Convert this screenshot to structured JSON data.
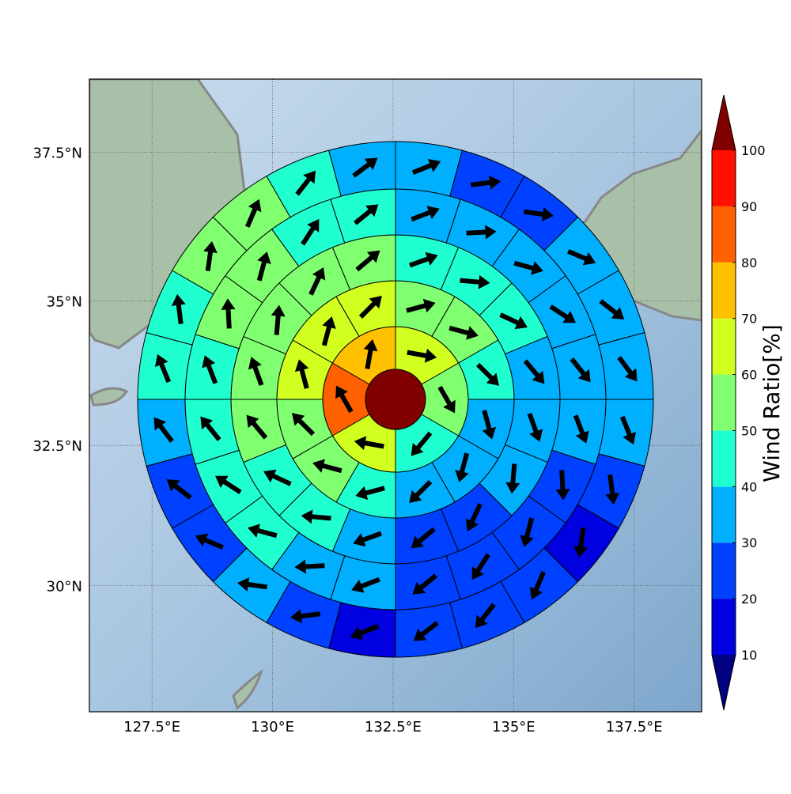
{
  "chart_data": {
    "type": "polar-sectors",
    "xlim": [
      126.2,
      138.9
    ],
    "ylim": [
      27.7,
      38.7
    ],
    "xticks": [
      {
        "value": 127.5,
        "label": "127.5°E"
      },
      {
        "value": 130,
        "label": "130°E"
      },
      {
        "value": 132.5,
        "label": "132.5°E"
      },
      {
        "value": 135,
        "label": "135°E"
      },
      {
        "value": 137.5,
        "label": "137.5°E"
      }
    ],
    "yticks": [
      {
        "value": 30,
        "label": "30°N"
      },
      {
        "value": 32.5,
        "label": "32.5°N"
      },
      {
        "value": 35,
        "label": "35°N"
      },
      {
        "value": 37.5,
        "label": "37.5°N"
      }
    ],
    "grid": true,
    "colorbar": {
      "label": "Wind Ratio[%]",
      "ticks": [
        10,
        20,
        30,
        40,
        50,
        60,
        70,
        80,
        90,
        100
      ],
      "colors": [
        "#000080",
        "#0000e0",
        "#0040ff",
        "#00b0ff",
        "#20ffd0",
        "#80ff70",
        "#d0ff20",
        "#ffc000",
        "#ff6000",
        "#ff1000",
        "#800000"
      ]
    },
    "center_value": 105,
    "rings": [
      {
        "values": [
          65,
          55,
          45,
          65,
          85,
          75
        ],
        "directions": [
          100,
          150,
          220,
          280,
          330,
          10
        ]
      },
      {
        "values": [
          55,
          55,
          45,
          35,
          35,
          35,
          45,
          55,
          55,
          65,
          65,
          65
        ],
        "directions": [
          75,
          105,
          135,
          165,
          195,
          225,
          255,
          285,
          315,
          345,
          15,
          45
        ]
      },
      {
        "values": [
          45,
          45,
          45,
          35,
          35,
          35,
          25,
          25,
          35,
          45,
          45,
          55,
          55,
          55,
          55,
          55
        ],
        "directions": [
          70,
          95,
          115,
          140,
          160,
          185,
          205,
          230,
          250,
          275,
          295,
          320,
          340,
          5,
          25,
          50
        ]
      },
      {
        "values": [
          35,
          35,
          35,
          35,
          35,
          35,
          25,
          25,
          25,
          25,
          35,
          35,
          45,
          45,
          45,
          45,
          55,
          55,
          45,
          45
        ],
        "directions": [
          69,
          87,
          105,
          123,
          141,
          159,
          177,
          195,
          213,
          231,
          249,
          267,
          285,
          303,
          321,
          339,
          357,
          15,
          33,
          51
        ]
      },
      {
        "values": [
          35,
          25,
          25,
          35,
          35,
          35,
          35,
          25,
          15,
          25,
          25,
          25,
          15,
          25,
          35,
          25,
          25,
          35,
          45,
          45,
          55,
          55,
          45,
          35
        ],
        "directions": [
          68,
          83,
          98,
          113,
          128,
          143,
          158,
          173,
          188,
          203,
          218,
          233,
          248,
          263,
          278,
          293,
          308,
          323,
          338,
          353,
          8,
          23,
          38,
          53
        ]
      }
    ]
  }
}
